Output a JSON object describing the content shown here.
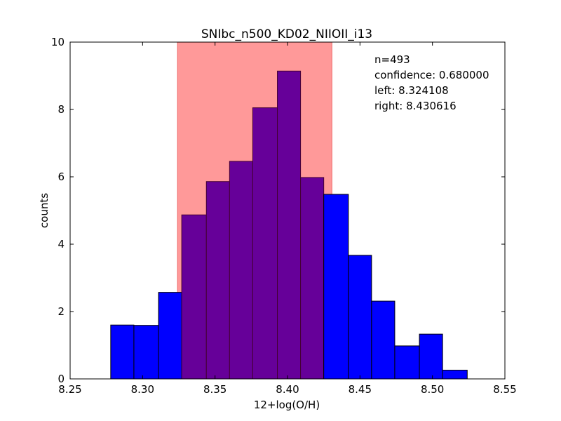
{
  "chart_data": {
    "type": "histogram",
    "title": "SNIbc_n500_KD02_NIIOII_i13",
    "xlabel": "12+log(O/H)",
    "ylabel": "counts",
    "xlim": [
      8.25,
      8.55
    ],
    "ylim": [
      0,
      10
    ],
    "xticks": [
      "8.25",
      "8.30",
      "8.35",
      "8.40",
      "8.45",
      "8.50",
      "8.55"
    ],
    "yticks": [
      "0",
      "2",
      "4",
      "6",
      "8",
      "10"
    ],
    "bins": [
      {
        "left": 8.278,
        "right": 8.294,
        "value": 1.6
      },
      {
        "left": 8.294,
        "right": 8.311,
        "value": 1.59
      },
      {
        "left": 8.311,
        "right": 8.327,
        "value": 2.57
      },
      {
        "left": 8.327,
        "right": 8.344,
        "value": 4.87
      },
      {
        "left": 8.344,
        "right": 8.36,
        "value": 5.86
      },
      {
        "left": 8.36,
        "right": 8.376,
        "value": 6.46
      },
      {
        "left": 8.376,
        "right": 8.393,
        "value": 8.05
      },
      {
        "left": 8.393,
        "right": 8.409,
        "value": 9.14
      },
      {
        "left": 8.409,
        "right": 8.425,
        "value": 5.98
      },
      {
        "left": 8.425,
        "right": 8.442,
        "value": 5.48
      },
      {
        "left": 8.442,
        "right": 8.458,
        "value": 3.67
      },
      {
        "left": 8.458,
        "right": 8.474,
        "value": 2.31
      },
      {
        "left": 8.474,
        "right": 8.491,
        "value": 0.98
      },
      {
        "left": 8.491,
        "right": 8.507,
        "value": 1.33
      },
      {
        "left": 8.507,
        "right": 8.524,
        "value": 0.26
      }
    ],
    "confidence_interval": {
      "left": 8.324108,
      "right": 8.430616
    },
    "annotations": [
      "n=493",
      "confidence: 0.680000",
      "left: 8.324108",
      "right: 8.430616"
    ],
    "colors": {
      "bar": "#0000ff",
      "bar_in_interval": "#660099",
      "interval_fill": "#ff9999",
      "bar_edge": "#000000"
    }
  }
}
